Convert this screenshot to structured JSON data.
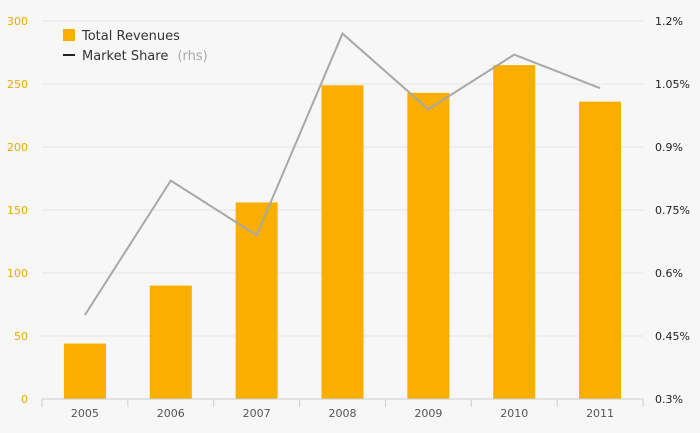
{
  "chart_data": {
    "type": "bar",
    "categories": [
      "2005",
      "2006",
      "2007",
      "2008",
      "2009",
      "2010",
      "2011"
    ],
    "series": [
      {
        "name": "Total Revenues",
        "type": "bar",
        "axis": "left",
        "values": [
          44,
          90,
          156,
          249,
          243,
          265,
          236
        ]
      },
      {
        "name": "Market Share",
        "type": "line",
        "axis": "right",
        "values": [
          0.5,
          0.82,
          0.69,
          1.17,
          0.99,
          1.12,
          1.04
        ]
      }
    ],
    "ylim": [
      0,
      300
    ],
    "yticks": [
      0,
      50,
      100,
      150,
      200,
      250,
      300
    ],
    "y2lim": [
      0.3,
      1.2
    ],
    "y2ticks": [
      "0.3%",
      "0.45%",
      "0.6%",
      "0.75%",
      "0.9%",
      "1.05%",
      "1.2%"
    ],
    "legend": {
      "position": "top-left",
      "items": [
        {
          "label": "Total Revenues",
          "marker": "square"
        },
        {
          "label": "Market Share",
          "suffix": "(rhs)",
          "marker": "line"
        }
      ]
    },
    "grid": true,
    "colors": {
      "bar": "#f9ae00",
      "line": "#a8a8a8",
      "left_axis_text": "#e8a900",
      "right_axis_text": "#222222",
      "grid": "#e4e4e4",
      "background": "#f7f7f7"
    }
  }
}
